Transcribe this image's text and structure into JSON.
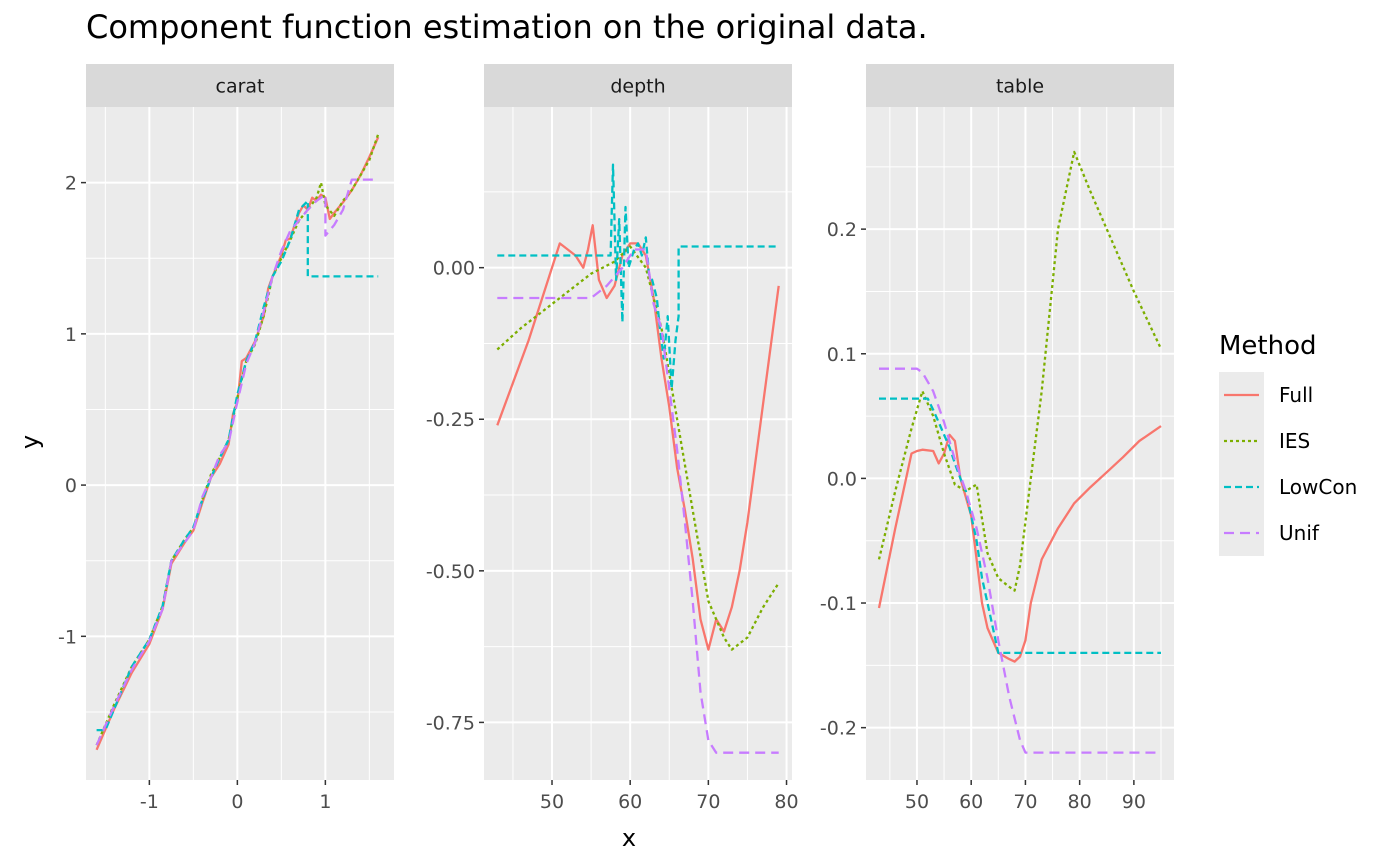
{
  "chart_data": {
    "type": "line",
    "title": "Component function estimation on the original data.",
    "xlabel": "x",
    "ylabel": "y",
    "legend": {
      "title": "Method",
      "placement": "right",
      "entries": [
        {
          "name": "Full",
          "color": "#F8766D",
          "dash": "solid"
        },
        {
          "name": "IES",
          "color": "#7CAE00",
          "dash": "dotted"
        },
        {
          "name": "LowCon",
          "color": "#00BFC4",
          "dash": "dashed"
        },
        {
          "name": "Unif",
          "color": "#C77CFF",
          "dash": "longdash"
        }
      ]
    },
    "panels": [
      {
        "strip": "carat",
        "xlim": [
          -1.72,
          1.78
        ],
        "ylim": [
          -1.95,
          2.5
        ],
        "xticks": [
          -1,
          0,
          1
        ],
        "xtick_labels": [
          "-1",
          "0",
          "1"
        ],
        "yticks": [
          -1,
          0,
          1,
          2
        ],
        "ytick_labels": [
          "-1",
          "0",
          "1",
          "2"
        ],
        "series": [
          {
            "name": "Full",
            "x": [
              -1.6,
              -1.4,
              -1.2,
              -1.0,
              -0.85,
              -0.75,
              -0.6,
              -0.5,
              -0.4,
              -0.3,
              -0.2,
              -0.1,
              -0.05,
              0.0,
              0.05,
              0.1,
              0.2,
              0.3,
              0.35,
              0.4,
              0.45,
              0.5,
              0.55,
              0.6,
              0.65,
              0.7,
              0.75,
              0.8,
              0.85,
              0.9,
              0.95,
              1.0,
              1.05,
              1.1,
              1.2,
              1.3,
              1.4,
              1.5,
              1.6
            ],
            "y": [
              -1.75,
              -1.48,
              -1.24,
              -1.05,
              -0.82,
              -0.52,
              -0.38,
              -0.3,
              -0.12,
              0.05,
              0.14,
              0.27,
              0.47,
              0.55,
              0.82,
              0.84,
              0.95,
              1.12,
              1.3,
              1.38,
              1.45,
              1.52,
              1.62,
              1.63,
              1.72,
              1.8,
              1.85,
              1.82,
              1.9,
              1.88,
              1.92,
              1.9,
              1.76,
              1.8,
              1.87,
              1.95,
              2.05,
              2.17,
              2.3
            ]
          },
          {
            "name": "IES",
            "x": [
              -1.6,
              -1.4,
              -1.2,
              -1.0,
              -0.85,
              -0.75,
              -0.6,
              -0.5,
              -0.4,
              -0.3,
              -0.2,
              -0.1,
              0.0,
              0.1,
              0.2,
              0.3,
              0.4,
              0.5,
              0.6,
              0.7,
              0.8,
              0.9,
              0.95,
              1.0,
              1.1,
              1.2,
              1.3,
              1.4,
              1.5,
              1.6
            ],
            "y": [
              -1.72,
              -1.45,
              -1.2,
              -1.02,
              -0.8,
              -0.5,
              -0.36,
              -0.28,
              -0.1,
              0.07,
              0.18,
              0.3,
              0.58,
              0.82,
              0.93,
              1.12,
              1.38,
              1.5,
              1.62,
              1.75,
              1.82,
              1.9,
              2.0,
              1.85,
              1.78,
              1.88,
              1.95,
              2.05,
              2.15,
              2.32
            ]
          },
          {
            "name": "LowCon",
            "x": [
              -1.6,
              -1.5,
              -1.4,
              -1.2,
              -1.0,
              -0.85,
              -0.75,
              -0.6,
              -0.5,
              -0.4,
              -0.3,
              -0.2,
              -0.1,
              0.0,
              0.1,
              0.2,
              0.3,
              0.4,
              0.5,
              0.6,
              0.7,
              0.8,
              0.8,
              1.6
            ],
            "y": [
              -1.62,
              -1.62,
              -1.48,
              -1.2,
              -1.02,
              -0.8,
              -0.5,
              -0.36,
              -0.28,
              -0.1,
              0.05,
              0.18,
              0.3,
              0.6,
              0.82,
              0.95,
              1.18,
              1.38,
              1.48,
              1.62,
              1.82,
              1.88,
              1.38,
              1.38
            ]
          },
          {
            "name": "Unif",
            "x": [
              -1.6,
              -1.4,
              -1.2,
              -1.0,
              -0.85,
              -0.75,
              -0.6,
              -0.5,
              -0.4,
              -0.3,
              -0.2,
              -0.1,
              0.0,
              0.1,
              0.2,
              0.3,
              0.4,
              0.5,
              0.6,
              0.7,
              0.8,
              0.9,
              1.0,
              1.0,
              1.1,
              1.2,
              1.3,
              1.6
            ],
            "y": [
              -1.72,
              -1.46,
              -1.22,
              -1.03,
              -0.82,
              -0.5,
              -0.38,
              -0.3,
              -0.08,
              0.05,
              0.2,
              0.28,
              0.55,
              0.8,
              0.94,
              1.15,
              1.38,
              1.55,
              1.68,
              1.75,
              1.82,
              1.88,
              1.92,
              1.65,
              1.72,
              1.82,
              2.02,
              2.02
            ]
          }
        ]
      },
      {
        "strip": "depth",
        "xlim": [
          41.3,
          80.7
        ],
        "ylim": [
          -0.845,
          0.265
        ],
        "xticks": [
          50,
          60,
          70,
          80
        ],
        "xtick_labels": [
          "50",
          "60",
          "70",
          "80"
        ],
        "yticks": [
          -0.75,
          -0.5,
          -0.25,
          0.0
        ],
        "ytick_labels": [
          "-0.75",
          "-0.50",
          "-0.25",
          "0.00"
        ],
        "series": [
          {
            "name": "Full",
            "x": [
              43,
              47,
              51,
              53,
              54,
              54.6,
              55.2,
              56,
              57,
              58,
              59,
              60,
              61,
              62,
              63,
              64,
              65,
              66,
              67,
              68,
              69,
              70,
              71,
              72,
              73,
              74,
              75,
              79
            ],
            "y": [
              -0.26,
              -0.12,
              0.04,
              0.02,
              0.0,
              0.03,
              0.07,
              -0.02,
              -0.05,
              -0.03,
              0.02,
              0.04,
              0.04,
              0.02,
              -0.05,
              -0.15,
              -0.23,
              -0.33,
              -0.4,
              -0.48,
              -0.58,
              -0.63,
              -0.58,
              -0.6,
              -0.56,
              -0.5,
              -0.42,
              -0.03
            ]
          },
          {
            "name": "IES",
            "x": [
              43,
              46,
              49,
              52,
              55,
              58,
              60,
              62,
              64,
              66,
              68,
              70,
              72,
              73,
              75,
              77,
              79
            ],
            "y": [
              -0.135,
              -0.1,
              -0.07,
              -0.04,
              -0.01,
              0.01,
              0.035,
              0.0,
              -0.1,
              -0.25,
              -0.4,
              -0.55,
              -0.61,
              -0.63,
              -0.61,
              -0.56,
              -0.52
            ]
          },
          {
            "name": "LowCon",
            "x": [
              43,
              57.5,
              57.8,
              58.2,
              58.6,
              59.0,
              59.4,
              59.8,
              60.5,
              61,
              61.5,
              62,
              62.4,
              62.8,
              63.4,
              63.8,
              64.3,
              64.8,
              65.3,
              65.8,
              66.2,
              66.2,
              79
            ],
            "y": [
              0.02,
              0.02,
              0.17,
              -0.02,
              0.08,
              -0.09,
              0.1,
              0.0,
              0.03,
              0.04,
              0.02,
              0.05,
              -0.01,
              -0.02,
              -0.05,
              -0.1,
              -0.15,
              -0.08,
              -0.2,
              -0.12,
              -0.08,
              0.035,
              0.035
            ]
          },
          {
            "name": "Unif",
            "x": [
              43,
              55,
              57,
              59,
              60.5,
              62,
              63,
              64,
              65,
              66,
              67,
              68,
              69,
              70,
              71,
              79
            ],
            "y": [
              -0.05,
              -0.05,
              -0.03,
              0.0,
              0.03,
              0.03,
              -0.06,
              -0.1,
              -0.2,
              -0.3,
              -0.42,
              -0.55,
              -0.7,
              -0.78,
              -0.8,
              -0.8
            ]
          }
        ]
      },
      {
        "strip": "table",
        "xlim": [
          40.6,
          97.4
        ],
        "ylim": [
          -0.242,
          0.298
        ],
        "xticks": [
          50,
          60,
          70,
          80,
          90
        ],
        "xtick_labels": [
          "50",
          "60",
          "70",
          "80",
          "90"
        ],
        "yticks": [
          -0.2,
          -0.1,
          0.0,
          0.1,
          0.2
        ],
        "ytick_labels": [
          "-0.2",
          "-0.1",
          "0.0",
          "0.1",
          "0.2"
        ],
        "series": [
          {
            "name": "Full",
            "x": [
              43,
              46,
              49,
              50,
              51,
              53,
              54,
              55,
              56,
              57,
              58,
              59,
              60,
              61,
              62,
              63,
              65,
              67,
              68,
              69,
              70,
              71,
              73,
              76,
              79,
              82,
              85,
              88,
              91,
              95
            ],
            "y": [
              -0.104,
              -0.04,
              0.02,
              0.022,
              0.023,
              0.022,
              0.012,
              0.02,
              0.035,
              0.03,
              0.0,
              -0.015,
              -0.03,
              -0.065,
              -0.1,
              -0.12,
              -0.14,
              -0.145,
              -0.147,
              -0.143,
              -0.13,
              -0.1,
              -0.065,
              -0.04,
              -0.02,
              -0.007,
              0.005,
              0.017,
              0.03,
              0.042
            ]
          },
          {
            "name": "IES",
            "x": [
              43,
              46,
              49,
              51,
              53,
              55,
              57,
              59,
              61,
              63,
              65,
              67,
              68,
              69,
              71,
              73,
              76,
              79,
              82,
              86,
              90,
              95
            ],
            "y": [
              -0.065,
              -0.01,
              0.04,
              0.07,
              0.05,
              0.02,
              -0.005,
              -0.01,
              -0.005,
              -0.06,
              -0.08,
              -0.087,
              -0.09,
              -0.07,
              0.0,
              0.07,
              0.2,
              0.262,
              0.23,
              0.19,
              0.15,
              0.104
            ]
          },
          {
            "name": "LowCon",
            "x": [
              43,
              51,
              52,
              53,
              54,
              55,
              56,
              57,
              58,
              59,
              60,
              61,
              62,
              63,
              64,
              65,
              66,
              95
            ],
            "y": [
              0.064,
              0.064,
              0.064,
              0.055,
              0.045,
              0.035,
              0.025,
              0.012,
              0.0,
              -0.01,
              -0.03,
              -0.05,
              -0.08,
              -0.1,
              -0.12,
              -0.14,
              -0.14,
              -0.14
            ]
          },
          {
            "name": "Unif",
            "x": [
              43,
              50,
              51,
              53,
              55,
              57,
              59,
              61,
              63,
              65,
              67,
              69,
              70,
              95
            ],
            "y": [
              0.088,
              0.088,
              0.085,
              0.07,
              0.045,
              0.015,
              -0.01,
              -0.04,
              -0.08,
              -0.13,
              -0.175,
              -0.21,
              -0.22,
              -0.22
            ]
          }
        ]
      }
    ]
  }
}
